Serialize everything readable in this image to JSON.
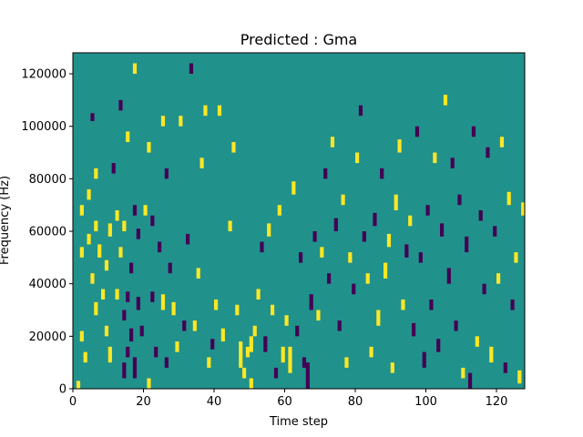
{
  "chart_data": {
    "type": "heatmap",
    "title": "Predicted : Gma",
    "xlabel": "Time step",
    "ylabel": "Frequency (Hz)",
    "xlim": [
      0,
      128
    ],
    "ylim": [
      0,
      128000
    ],
    "x_ticks": [
      0,
      20,
      40,
      60,
      80,
      100,
      120
    ],
    "y_ticks": [
      0,
      20000,
      40000,
      60000,
      80000,
      100000,
      120000
    ],
    "grid": false,
    "legend": "none",
    "colors": {
      "background": "#21918c",
      "low": "#440154",
      "high": "#fde725"
    },
    "n_time_steps": 128,
    "n_frequency_bins": 128,
    "value_levels": {
      "low": -1,
      "background": 0,
      "high": 1
    },
    "notes_encoding": "cells: [time_step, freq_bin_start, bin_count, level]; each frequency bin = 1000 Hz",
    "cells": [
      [
        1,
        0,
        3,
        1
      ],
      [
        2,
        18,
        4,
        1
      ],
      [
        2,
        50,
        4,
        1
      ],
      [
        2,
        66,
        4,
        1
      ],
      [
        3,
        10,
        4,
        1
      ],
      [
        4,
        55,
        4,
        1
      ],
      [
        4,
        72,
        4,
        1
      ],
      [
        5,
        40,
        4,
        1
      ],
      [
        5,
        102,
        3,
        -1
      ],
      [
        6,
        28,
        5,
        1
      ],
      [
        6,
        60,
        4,
        1
      ],
      [
        6,
        80,
        4,
        1
      ],
      [
        7,
        50,
        5,
        1
      ],
      [
        8,
        34,
        4,
        1
      ],
      [
        9,
        20,
        4,
        1
      ],
      [
        9,
        45,
        4,
        1
      ],
      [
        10,
        10,
        6,
        1
      ],
      [
        10,
        58,
        5,
        1
      ],
      [
        11,
        82,
        4,
        -1
      ],
      [
        12,
        34,
        4,
        1
      ],
      [
        12,
        64,
        4,
        1
      ],
      [
        13,
        50,
        4,
        1
      ],
      [
        13,
        106,
        4,
        -1
      ],
      [
        14,
        4,
        6,
        -1
      ],
      [
        14,
        26,
        4,
        -1
      ],
      [
        14,
        60,
        4,
        1
      ],
      [
        15,
        12,
        4,
        -1
      ],
      [
        15,
        33,
        4,
        -1
      ],
      [
        15,
        94,
        4,
        1
      ],
      [
        16,
        18,
        5,
        -1
      ],
      [
        16,
        44,
        4,
        -1
      ],
      [
        17,
        4,
        8,
        -1
      ],
      [
        17,
        66,
        4,
        -1
      ],
      [
        17,
        120,
        4,
        1
      ],
      [
        18,
        30,
        5,
        -1
      ],
      [
        18,
        57,
        4,
        -1
      ],
      [
        19,
        20,
        4,
        -1
      ],
      [
        20,
        66,
        4,
        1
      ],
      [
        21,
        0,
        4,
        1
      ],
      [
        21,
        90,
        4,
        1
      ],
      [
        22,
        33,
        4,
        -1
      ],
      [
        22,
        62,
        4,
        -1
      ],
      [
        23,
        12,
        4,
        -1
      ],
      [
        24,
        52,
        4,
        -1
      ],
      [
        25,
        30,
        6,
        1
      ],
      [
        25,
        100,
        4,
        1
      ],
      [
        26,
        8,
        4,
        -1
      ],
      [
        26,
        80,
        4,
        -1
      ],
      [
        27,
        44,
        4,
        -1
      ],
      [
        28,
        28,
        5,
        1
      ],
      [
        29,
        14,
        4,
        1
      ],
      [
        30,
        100,
        4,
        1
      ],
      [
        31,
        22,
        4,
        -1
      ],
      [
        32,
        55,
        4,
        -1
      ],
      [
        33,
        120,
        4,
        -1
      ],
      [
        34,
        22,
        4,
        1
      ],
      [
        35,
        42,
        4,
        1
      ],
      [
        36,
        84,
        4,
        1
      ],
      [
        37,
        104,
        4,
        1
      ],
      [
        38,
        8,
        4,
        1
      ],
      [
        39,
        15,
        4,
        -1
      ],
      [
        40,
        30,
        4,
        1
      ],
      [
        41,
        104,
        4,
        1
      ],
      [
        42,
        18,
        5,
        1
      ],
      [
        44,
        60,
        4,
        1
      ],
      [
        45,
        90,
        4,
        1
      ],
      [
        46,
        28,
        4,
        1
      ],
      [
        47,
        8,
        10,
        1
      ],
      [
        48,
        4,
        4,
        1
      ],
      [
        49,
        12,
        4,
        1
      ],
      [
        50,
        0,
        4,
        1
      ],
      [
        50,
        14,
        6,
        1
      ],
      [
        51,
        20,
        4,
        1
      ],
      [
        52,
        34,
        4,
        1
      ],
      [
        53,
        52,
        4,
        -1
      ],
      [
        54,
        14,
        6,
        -1
      ],
      [
        55,
        58,
        5,
        1
      ],
      [
        56,
        28,
        4,
        1
      ],
      [
        57,
        4,
        4,
        -1
      ],
      [
        58,
        66,
        4,
        1
      ],
      [
        59,
        10,
        6,
        1
      ],
      [
        60,
        24,
        4,
        1
      ],
      [
        61,
        6,
        10,
        1
      ],
      [
        62,
        74,
        5,
        1
      ],
      [
        63,
        20,
        4,
        -1
      ],
      [
        64,
        48,
        4,
        -1
      ],
      [
        65,
        8,
        4,
        -1
      ],
      [
        66,
        0,
        10,
        -1
      ],
      [
        67,
        30,
        6,
        -1
      ],
      [
        68,
        56,
        4,
        -1
      ],
      [
        69,
        26,
        4,
        1
      ],
      [
        70,
        50,
        4,
        1
      ],
      [
        71,
        80,
        4,
        -1
      ],
      [
        72,
        40,
        4,
        -1
      ],
      [
        73,
        92,
        4,
        1
      ],
      [
        74,
        60,
        5,
        -1
      ],
      [
        75,
        22,
        4,
        -1
      ],
      [
        76,
        70,
        4,
        1
      ],
      [
        77,
        8,
        4,
        1
      ],
      [
        78,
        48,
        4,
        1
      ],
      [
        79,
        36,
        4,
        -1
      ],
      [
        80,
        86,
        4,
        1
      ],
      [
        81,
        104,
        4,
        -1
      ],
      [
        82,
        56,
        4,
        -1
      ],
      [
        83,
        40,
        4,
        1
      ],
      [
        84,
        12,
        4,
        1
      ],
      [
        85,
        62,
        5,
        -1
      ],
      [
        86,
        24,
        6,
        1
      ],
      [
        87,
        80,
        4,
        -1
      ],
      [
        88,
        42,
        6,
        1
      ],
      [
        89,
        54,
        5,
        1
      ],
      [
        90,
        6,
        4,
        1
      ],
      [
        91,
        68,
        6,
        1
      ],
      [
        92,
        90,
        5,
        1
      ],
      [
        93,
        30,
        4,
        1
      ],
      [
        94,
        50,
        5,
        -1
      ],
      [
        95,
        62,
        4,
        1
      ],
      [
        96,
        20,
        5,
        -1
      ],
      [
        97,
        96,
        4,
        -1
      ],
      [
        98,
        48,
        4,
        -1
      ],
      [
        99,
        8,
        6,
        -1
      ],
      [
        100,
        66,
        4,
        -1
      ],
      [
        101,
        30,
        4,
        -1
      ],
      [
        102,
        86,
        4,
        1
      ],
      [
        103,
        14,
        5,
        -1
      ],
      [
        104,
        58,
        5,
        -1
      ],
      [
        105,
        108,
        4,
        1
      ],
      [
        106,
        40,
        6,
        -1
      ],
      [
        107,
        84,
        4,
        -1
      ],
      [
        108,
        22,
        4,
        -1
      ],
      [
        109,
        70,
        4,
        -1
      ],
      [
        110,
        4,
        4,
        1
      ],
      [
        111,
        52,
        6,
        -1
      ],
      [
        112,
        0,
        6,
        -1
      ],
      [
        113,
        96,
        4,
        -1
      ],
      [
        114,
        16,
        4,
        1
      ],
      [
        115,
        64,
        4,
        -1
      ],
      [
        116,
        36,
        4,
        -1
      ],
      [
        117,
        88,
        4,
        -1
      ],
      [
        118,
        10,
        6,
        1
      ],
      [
        119,
        58,
        4,
        -1
      ],
      [
        120,
        40,
        4,
        1
      ],
      [
        121,
        92,
        4,
        1
      ],
      [
        122,
        6,
        4,
        -1
      ],
      [
        123,
        70,
        5,
        1
      ],
      [
        124,
        30,
        4,
        -1
      ],
      [
        125,
        48,
        4,
        1
      ],
      [
        126,
        2,
        5,
        1
      ],
      [
        127,
        66,
        5,
        1
      ]
    ]
  }
}
